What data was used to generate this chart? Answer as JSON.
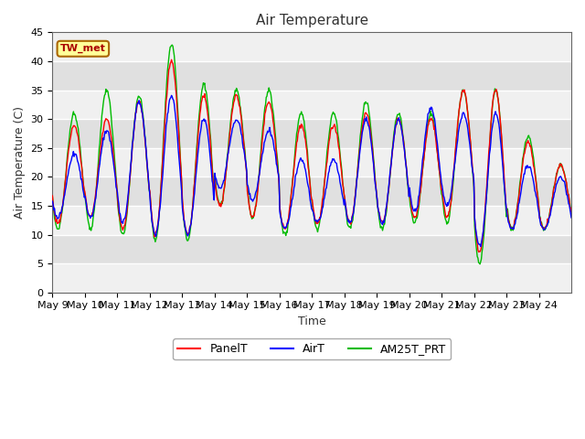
{
  "title": "Air Temperature",
  "xlabel": "Time",
  "ylabel": "Air Temperature (C)",
  "ylim": [
    0,
    45
  ],
  "x_tick_labels": [
    "May 9",
    "May 10",
    "May 11",
    "May 12",
    "May 13",
    "May 14",
    "May 15",
    "May 16",
    "May 17",
    "May 18",
    "May 19",
    "May 20",
    "May 21",
    "May 22",
    "May 23",
    "May 24"
  ],
  "annotation_text": "TW_met",
  "annotation_color": "#aa0000",
  "annotation_bg": "#ffff99",
  "annotation_border": "#aa6600",
  "line_colors": {
    "PanelT": "#ff0000",
    "AirT": "#0000ff",
    "AM25T_PRT": "#00bb00"
  },
  "legend_labels": [
    "PanelT",
    "AirT",
    "AM25T_PRT"
  ],
  "fig_bg": "#ffffff",
  "plot_bg_light": "#f0f0f0",
  "plot_bg_dark": "#e0e0e0",
  "grid_color": "#ffffff",
  "title_fontsize": 11,
  "axis_label_fontsize": 9,
  "tick_fontsize": 8,
  "peak_temps_panel": [
    29,
    30,
    33,
    40,
    34,
    34,
    33,
    29,
    29,
    31,
    30,
    30,
    35,
    35,
    26,
    22
  ],
  "peak_temps_air": [
    24,
    28,
    33,
    34,
    30,
    30,
    28,
    23,
    23,
    30,
    30,
    32,
    31,
    31,
    22,
    20
  ],
  "peak_temps_am25": [
    31,
    35,
    34,
    43,
    36,
    35,
    35,
    31,
    31,
    33,
    31,
    31,
    35,
    35,
    27,
    22
  ],
  "min_temps_panel": [
    12,
    13,
    11,
    10,
    10,
    15,
    13,
    11,
    12,
    12,
    12,
    13,
    13,
    7,
    11,
    11
  ],
  "min_temps_air": [
    13,
    13,
    12,
    10,
    10,
    18,
    16,
    11,
    12,
    12,
    12,
    14,
    15,
    8,
    11,
    11
  ],
  "min_temps_am25": [
    11,
    11,
    10,
    9,
    9,
    15,
    13,
    10,
    11,
    11,
    11,
    12,
    12,
    5,
    11,
    11
  ]
}
